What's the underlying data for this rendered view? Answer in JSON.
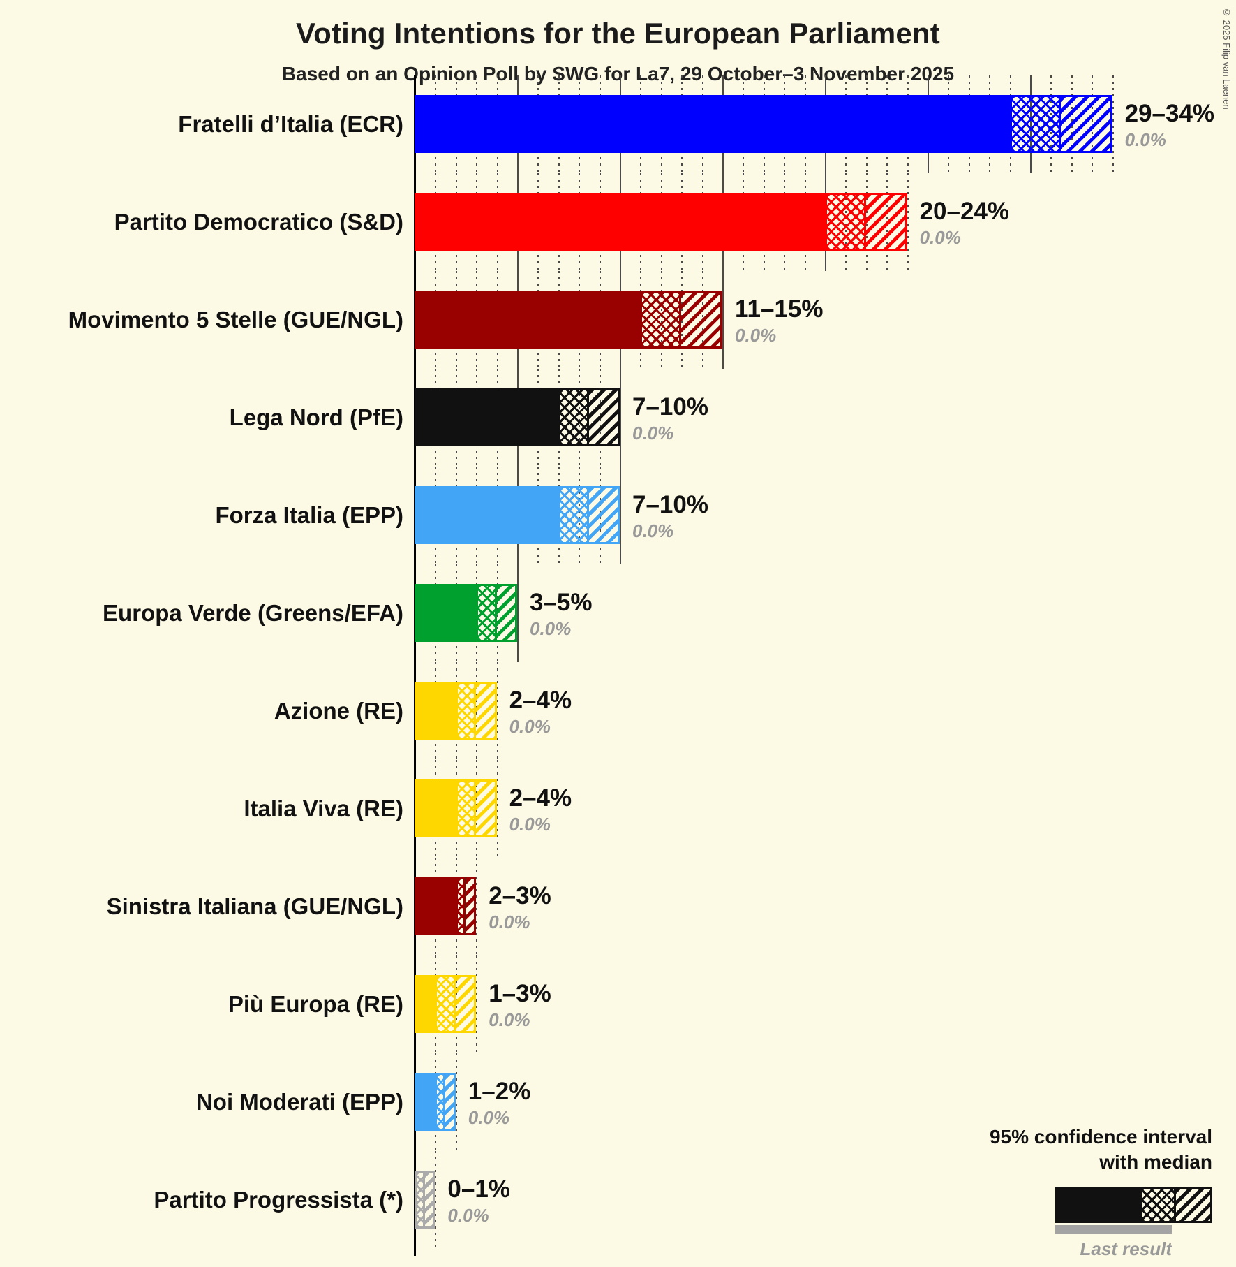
{
  "page": {
    "copyright": "© 2025 Filip van Laenen",
    "background_color": "#fcf9e4"
  },
  "chart_data": {
    "type": "bar",
    "orientation": "horizontal",
    "title": "Voting Intentions for the European Parliament",
    "subtitle": "Based on an Opinion Poll by SWG for La7, 29 October–3 November 2025",
    "x_unit": "percent",
    "xlim": [
      0,
      34
    ],
    "minor_grid_step": 1,
    "major_grid_step": 5,
    "grid_style": "dotted minor, solid major, solid zero axis",
    "legend": {
      "line1": "95% confidence interval",
      "line2": "with median",
      "last_result": "Last result"
    },
    "bars": [
      {
        "label": "Fratelli d’Italia (ECR)",
        "color": "#0000ff",
        "ci_low": 29,
        "median": 31.5,
        "ci_high": 34,
        "ci_label": "29–34%",
        "last_result": 0.0,
        "last_result_label": "0.0%"
      },
      {
        "label": "Partito Democratico (S&D)",
        "color": "#ff0000",
        "ci_low": 20,
        "median": 22,
        "ci_high": 24,
        "ci_label": "20–24%",
        "last_result": 0.0,
        "last_result_label": "0.0%"
      },
      {
        "label": "Movimento 5 Stelle (GUE/NGL)",
        "color": "#990000",
        "ci_low": 11,
        "median": 13,
        "ci_high": 15,
        "ci_label": "11–15%",
        "last_result": 0.0,
        "last_result_label": "0.0%"
      },
      {
        "label": "Lega Nord (PfE)",
        "color": "#111111",
        "ci_low": 7,
        "median": 8.5,
        "ci_high": 10,
        "ci_label": "7–10%",
        "last_result": 0.0,
        "last_result_label": "0.0%"
      },
      {
        "label": "Forza Italia (EPP)",
        "color": "#42a5f5",
        "ci_low": 7,
        "median": 8.5,
        "ci_high": 10,
        "ci_label": "7–10%",
        "last_result": 0.0,
        "last_result_label": "0.0%"
      },
      {
        "label": "Europa Verde (Greens/EFA)",
        "color": "#00a02e",
        "ci_low": 3,
        "median": 4,
        "ci_high": 5,
        "ci_label": "3–5%",
        "last_result": 0.0,
        "last_result_label": "0.0%"
      },
      {
        "label": "Azione (RE)",
        "color": "#ffd700",
        "ci_low": 2,
        "median": 3,
        "ci_high": 4,
        "ci_label": "2–4%",
        "last_result": 0.0,
        "last_result_label": "0.0%"
      },
      {
        "label": "Italia Viva (RE)",
        "color": "#ffd700",
        "ci_low": 2,
        "median": 3,
        "ci_high": 4,
        "ci_label": "2–4%",
        "last_result": 0.0,
        "last_result_label": "0.0%"
      },
      {
        "label": "Sinistra Italiana (GUE/NGL)",
        "color": "#990000",
        "ci_low": 2,
        "median": 2.5,
        "ci_high": 3,
        "ci_label": "2–3%",
        "last_result": 0.0,
        "last_result_label": "0.0%"
      },
      {
        "label": "Più Europa (RE)",
        "color": "#ffd700",
        "ci_low": 1,
        "median": 2,
        "ci_high": 3,
        "ci_label": "1–3%",
        "last_result": 0.0,
        "last_result_label": "0.0%"
      },
      {
        "label": "Noi Moderati (EPP)",
        "color": "#42a5f5",
        "ci_low": 1,
        "median": 1.5,
        "ci_high": 2,
        "ci_label": "1–2%",
        "last_result": 0.0,
        "last_result_label": "0.0%"
      },
      {
        "label": "Partito Progressista (*)",
        "color": "#aaaaaa",
        "ci_low": 0,
        "median": 0.5,
        "ci_high": 1,
        "ci_label": "0–1%",
        "last_result": 0.0,
        "last_result_label": "0.0%"
      }
    ]
  }
}
